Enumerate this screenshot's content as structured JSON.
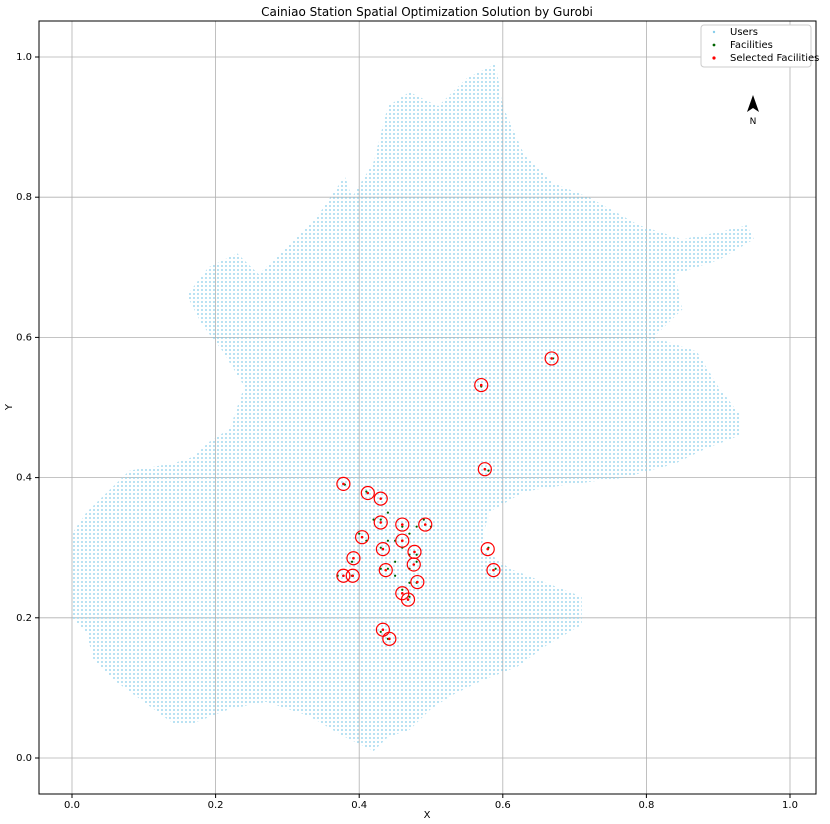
{
  "chart_data": {
    "type": "scatter",
    "title": "Cainiao Station Spatial Optimization Solution by Gurobi",
    "xlabel": "X",
    "ylabel": "Y",
    "xlim": [
      -0.05,
      1.04
    ],
    "ylim": [
      -0.05,
      1.05
    ],
    "xticks": [
      "0.0",
      "0.2",
      "0.4",
      "0.6",
      "0.8",
      "1.0"
    ],
    "yticks": [
      "0.0",
      "0.2",
      "0.4",
      "0.6",
      "0.8",
      "1.0"
    ],
    "grid": true,
    "legend_position": "top-right",
    "north_arrow_label": "N",
    "colors": {
      "users": "#87ceeb",
      "facilities": "#006400",
      "selected": "#ff0000",
      "grid": "#b0b0b0"
    },
    "series": [
      {
        "name": "Users",
        "note_region": "Beijing boundary outline (users fill this region as a dense grid)",
        "outline": [
          [
            0.0,
            0.32
          ],
          [
            0.02,
            0.35
          ],
          [
            0.04,
            0.37
          ],
          [
            0.06,
            0.39
          ],
          [
            0.08,
            0.41
          ],
          [
            0.14,
            0.42
          ],
          [
            0.17,
            0.43
          ],
          [
            0.19,
            0.45
          ],
          [
            0.22,
            0.47
          ],
          [
            0.24,
            0.53
          ],
          [
            0.21,
            0.58
          ],
          [
            0.18,
            0.62
          ],
          [
            0.16,
            0.66
          ],
          [
            0.19,
            0.7
          ],
          [
            0.23,
            0.72
          ],
          [
            0.26,
            0.69
          ],
          [
            0.3,
            0.73
          ],
          [
            0.34,
            0.77
          ],
          [
            0.38,
            0.83
          ],
          [
            0.39,
            0.8
          ],
          [
            0.42,
            0.85
          ],
          [
            0.44,
            0.93
          ],
          [
            0.47,
            0.95
          ],
          [
            0.51,
            0.93
          ],
          [
            0.55,
            0.97
          ],
          [
            0.59,
            0.99
          ],
          [
            0.6,
            0.93
          ],
          [
            0.63,
            0.86
          ],
          [
            0.67,
            0.82
          ],
          [
            0.72,
            0.8
          ],
          [
            0.79,
            0.76
          ],
          [
            0.85,
            0.74
          ],
          [
            0.9,
            0.75
          ],
          [
            0.94,
            0.76
          ],
          [
            0.95,
            0.74
          ],
          [
            0.9,
            0.71
          ],
          [
            0.84,
            0.69
          ],
          [
            0.85,
            0.64
          ],
          [
            0.81,
            0.6
          ],
          [
            0.87,
            0.58
          ],
          [
            0.9,
            0.53
          ],
          [
            0.93,
            0.49
          ],
          [
            0.93,
            0.46
          ],
          [
            0.88,
            0.44
          ],
          [
            0.84,
            0.42
          ],
          [
            0.77,
            0.4
          ],
          [
            0.69,
            0.39
          ],
          [
            0.63,
            0.38
          ],
          [
            0.58,
            0.35
          ],
          [
            0.57,
            0.3
          ],
          [
            0.61,
            0.27
          ],
          [
            0.66,
            0.25
          ],
          [
            0.71,
            0.23
          ],
          [
            0.71,
            0.19
          ],
          [
            0.66,
            0.16
          ],
          [
            0.62,
            0.13
          ],
          [
            0.57,
            0.11
          ],
          [
            0.53,
            0.09
          ],
          [
            0.5,
            0.07
          ],
          [
            0.47,
            0.04
          ],
          [
            0.44,
            0.03
          ],
          [
            0.42,
            0.01
          ],
          [
            0.38,
            0.03
          ],
          [
            0.33,
            0.06
          ],
          [
            0.27,
            0.08
          ],
          [
            0.22,
            0.07
          ],
          [
            0.17,
            0.05
          ],
          [
            0.14,
            0.05
          ],
          [
            0.1,
            0.08
          ],
          [
            0.06,
            0.11
          ],
          [
            0.03,
            0.14
          ],
          [
            0.02,
            0.18
          ],
          [
            0.0,
            0.2
          ],
          [
            0.0,
            0.26
          ]
        ]
      },
      {
        "name": "Facilities",
        "points": [
          [
            0.37,
            0.26
          ],
          [
            0.39,
            0.26
          ],
          [
            0.38,
            0.39
          ],
          [
            0.41,
            0.38
          ],
          [
            0.43,
            0.37
          ],
          [
            0.4,
            0.32
          ],
          [
            0.42,
            0.34
          ],
          [
            0.43,
            0.34
          ],
          [
            0.44,
            0.35
          ],
          [
            0.43,
            0.3
          ],
          [
            0.44,
            0.31
          ],
          [
            0.45,
            0.31
          ],
          [
            0.46,
            0.31
          ],
          [
            0.47,
            0.32
          ],
          [
            0.46,
            0.33
          ],
          [
            0.48,
            0.33
          ],
          [
            0.49,
            0.34
          ],
          [
            0.5,
            0.33
          ],
          [
            0.48,
            0.29
          ],
          [
            0.47,
            0.29
          ],
          [
            0.48,
            0.28
          ],
          [
            0.47,
            0.27
          ],
          [
            0.43,
            0.27
          ],
          [
            0.44,
            0.27
          ],
          [
            0.45,
            0.26
          ],
          [
            0.47,
            0.25
          ],
          [
            0.48,
            0.25
          ],
          [
            0.46,
            0.24
          ],
          [
            0.47,
            0.23
          ],
          [
            0.43,
            0.18
          ],
          [
            0.44,
            0.17
          ],
          [
            0.57,
            0.53
          ],
          [
            0.58,
            0.41
          ],
          [
            0.58,
            0.3
          ],
          [
            0.59,
            0.27
          ],
          [
            0.67,
            0.57
          ],
          [
            0.39,
            0.28
          ],
          [
            0.41,
            0.31
          ],
          [
            0.45,
            0.28
          ],
          [
            0.46,
            0.3
          ]
        ]
      },
      {
        "name": "Selected Facilities",
        "points": [
          [
            0.668,
            0.57
          ],
          [
            0.57,
            0.532
          ],
          [
            0.575,
            0.412
          ],
          [
            0.378,
            0.391
          ],
          [
            0.412,
            0.378
          ],
          [
            0.43,
            0.37
          ],
          [
            0.46,
            0.333
          ],
          [
            0.492,
            0.333
          ],
          [
            0.43,
            0.336
          ],
          [
            0.404,
            0.315
          ],
          [
            0.46,
            0.31
          ],
          [
            0.433,
            0.298
          ],
          [
            0.477,
            0.294
          ],
          [
            0.579,
            0.298
          ],
          [
            0.392,
            0.285
          ],
          [
            0.476,
            0.276
          ],
          [
            0.437,
            0.268
          ],
          [
            0.587,
            0.268
          ],
          [
            0.378,
            0.26
          ],
          [
            0.391,
            0.26
          ],
          [
            0.481,
            0.251
          ],
          [
            0.46,
            0.235
          ],
          [
            0.468,
            0.226
          ],
          [
            0.433,
            0.183
          ],
          [
            0.442,
            0.17
          ]
        ]
      }
    ]
  }
}
